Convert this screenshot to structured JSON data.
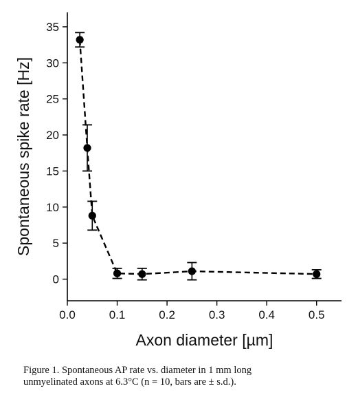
{
  "chart_data": {
    "type": "scatter",
    "title": "",
    "xlabel": "Axon diameter [µm]",
    "ylabel": "Spontaneous spike rate [Hz]",
    "xlim": [
      0.0,
      0.55
    ],
    "ylim": [
      -3,
      37
    ],
    "x_ticks": [
      0.0,
      0.1,
      0.2,
      0.3,
      0.4,
      0.5
    ],
    "x_tick_labels": [
      "0.0",
      "0.1",
      "0.2",
      "0.3",
      "0.4",
      "0.5"
    ],
    "y_ticks": [
      0,
      5,
      10,
      15,
      20,
      25,
      30,
      35
    ],
    "y_tick_labels": [
      "0",
      "5",
      "10",
      "15",
      "20",
      "25",
      "30",
      "35"
    ],
    "line_style": "dashed",
    "marker": "filled-circle",
    "color": "#000000",
    "grid": false,
    "legend": "none",
    "points": [
      {
        "x": 0.025,
        "y": 33.2,
        "err": 1.0
      },
      {
        "x": 0.04,
        "y": 18.2,
        "err": 3.2
      },
      {
        "x": 0.05,
        "y": 8.8,
        "err": 2.0
      },
      {
        "x": 0.1,
        "y": 0.8,
        "err": 0.7
      },
      {
        "x": 0.15,
        "y": 0.7,
        "err": 0.8
      },
      {
        "x": 0.25,
        "y": 1.1,
        "err": 1.2
      },
      {
        "x": 0.5,
        "y": 0.7,
        "err": 0.6
      }
    ]
  },
  "caption": {
    "line1": "Figure 1. Spontaneous AP rate vs. diameter in 1 mm long",
    "line2": "unmyelinated axons at 6.3°C (n = 10, bars are ± s.d.)."
  }
}
